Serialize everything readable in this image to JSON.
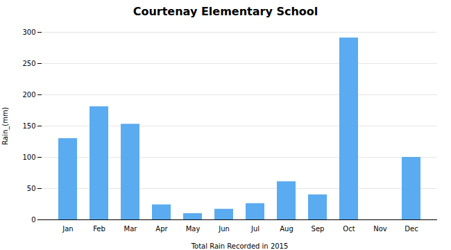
{
  "chart_data": {
    "type": "bar",
    "title": "Courtenay Elementary School",
    "xlabel": "Total Rain Recorded in 2015",
    "ylabel": "Rain_(mm)",
    "categories": [
      "Jan",
      "Feb",
      "Mar",
      "Apr",
      "May",
      "Jun",
      "Jul",
      "Aug",
      "Sep",
      "Oct",
      "Nov",
      "Dec"
    ],
    "values": [
      130,
      181,
      153,
      24,
      10,
      17,
      26,
      61,
      40,
      291,
      0,
      100
    ],
    "color": "#5aabf0",
    "ylim": [
      0,
      300
    ],
    "yticks": [
      0,
      50,
      100,
      150,
      200,
      250,
      300
    ],
    "grid": true
  }
}
